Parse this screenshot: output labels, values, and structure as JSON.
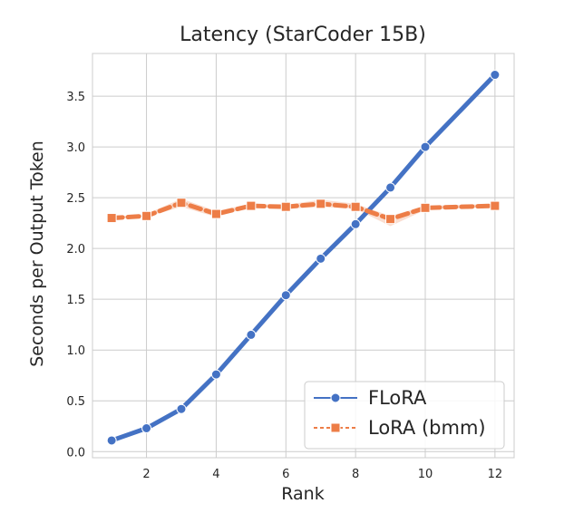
{
  "chart_data": {
    "type": "line",
    "title": "Latency (StarCoder 15B)",
    "xlabel": "Rank",
    "ylabel": "Seconds per Output Token",
    "x": [
      1,
      2,
      3,
      4,
      5,
      6,
      7,
      8,
      9,
      10,
      11,
      12
    ],
    "xlim": [
      0.45,
      12.55
    ],
    "ylim": [
      -0.06,
      3.92
    ],
    "xticks": [
      2,
      4,
      6,
      8,
      10,
      12
    ],
    "yticks": [
      0.0,
      0.5,
      1.0,
      1.5,
      2.0,
      2.5,
      3.0,
      3.5
    ],
    "xtick_labels": [
      "2",
      "4",
      "6",
      "8",
      "10",
      "12"
    ],
    "ytick_labels": [
      "0.0",
      "0.5",
      "1.0",
      "1.5",
      "2.0",
      "2.5",
      "3.0",
      "3.5"
    ],
    "grid": true,
    "legend_position": "lower-right",
    "series": [
      {
        "name": "FLoRA",
        "color": "#4472c4",
        "marker": "circle",
        "linestyle": "solid",
        "values": [
          0.11,
          0.23,
          0.42,
          0.76,
          1.15,
          1.54,
          1.9,
          2.24,
          2.6,
          3.0,
          null,
          3.71
        ]
      },
      {
        "name": "LoRA (bmm)",
        "color": "#ed7d47",
        "marker": "square",
        "linestyle": "dashed",
        "values": [
          2.3,
          2.32,
          2.45,
          2.34,
          2.42,
          2.41,
          2.44,
          2.41,
          2.29,
          2.4,
          null,
          2.42
        ],
        "band_low": [
          2.29,
          2.31,
          2.41,
          2.31,
          2.41,
          2.39,
          2.41,
          2.39,
          2.22,
          2.38,
          null,
          2.41
        ],
        "band_high": [
          2.31,
          2.34,
          2.49,
          2.37,
          2.44,
          2.43,
          2.48,
          2.44,
          2.32,
          2.42,
          null,
          2.44
        ]
      }
    ]
  }
}
